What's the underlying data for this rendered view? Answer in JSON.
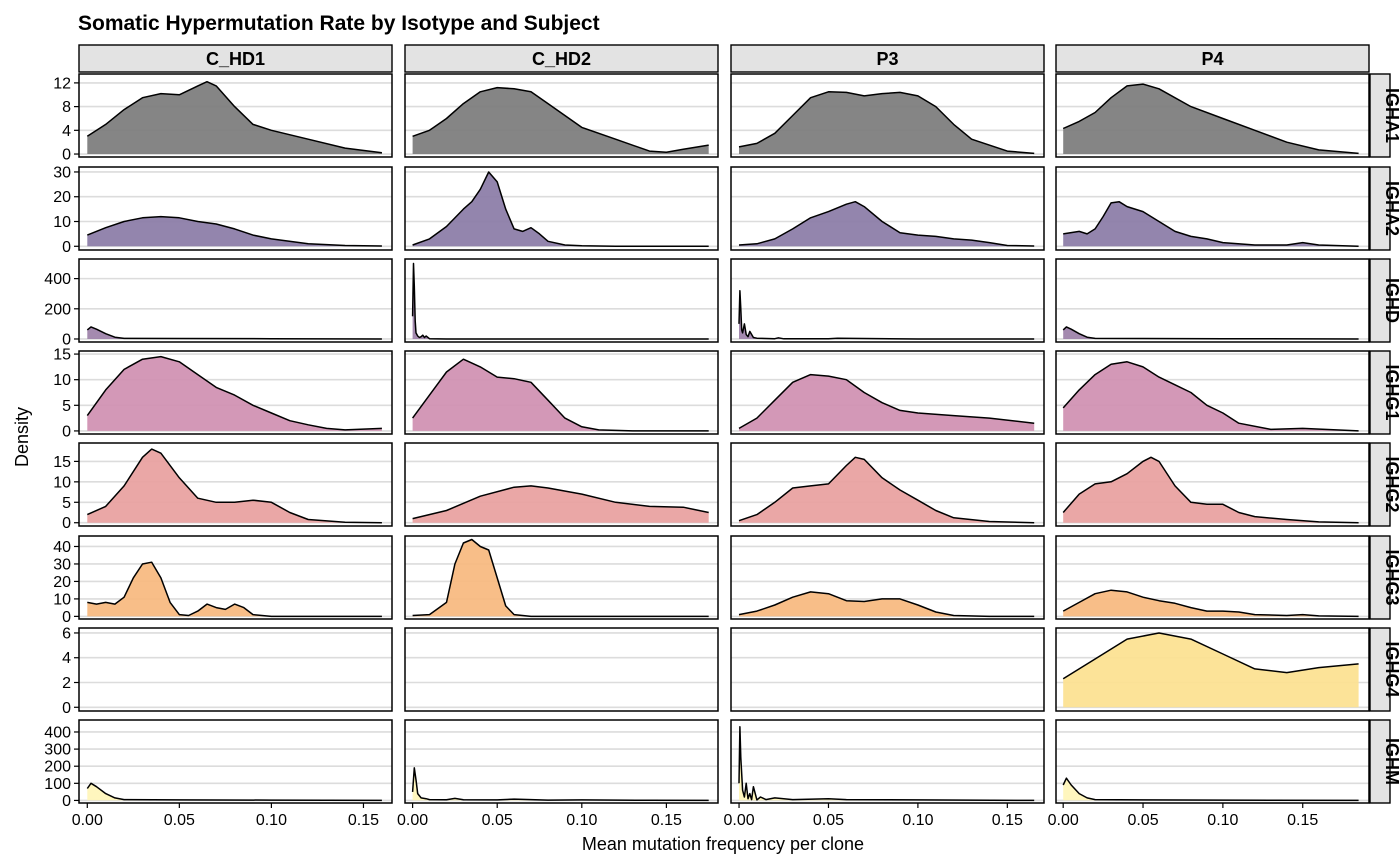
{
  "chart_data": {
    "type": "density",
    "title": "Somatic Hypermutation Rate by Isotype and Subject",
    "xlabel": "Mean mutation frequency per clone",
    "ylabel": "Density",
    "columns": [
      "C_HD1",
      "C_HD2",
      "P3",
      "P4"
    ],
    "rows": [
      "IGHA1",
      "IGHA2",
      "IGHD",
      "IGHG1",
      "IGHG2",
      "IGHG3",
      "IGHG4",
      "IGHM"
    ],
    "x_ticks": [
      0.0,
      0.05,
      0.1,
      0.15
    ],
    "x_tick_labels": [
      "0.00",
      "0.05",
      "0.10",
      "0.15"
    ],
    "xlim_by_column": [
      [
        -0.0045,
        0.1655
      ],
      [
        -0.0045,
        0.1805
      ],
      [
        -0.0045,
        0.1705
      ],
      [
        -0.0045,
        0.1915
      ]
    ],
    "grid": "horizontal",
    "row_scales": [
      {
        "ylim": [
          -0.5,
          13.5
        ],
        "ticks": [
          0,
          4,
          8,
          12
        ]
      },
      {
        "ylim": [
          -1.5,
          32
        ],
        "ticks": [
          0,
          10,
          20,
          30
        ]
      },
      {
        "ylim": [
          -20,
          530
        ],
        "ticks": [
          0,
          200,
          400
        ]
      },
      {
        "ylim": [
          -0.6,
          15.6
        ],
        "ticks": [
          0,
          5,
          10,
          15
        ]
      },
      {
        "ylim": [
          -0.8,
          19.5
        ],
        "ticks": [
          0,
          5,
          10,
          15
        ]
      },
      {
        "ylim": [
          -1.5,
          46
        ],
        "ticks": [
          0,
          10,
          20,
          30,
          40
        ]
      },
      {
        "ylim": [
          -0.3,
          6.4
        ],
        "ticks": [
          0,
          2,
          4,
          6
        ]
      },
      {
        "ylim": [
          -15,
          470
        ],
        "ticks": [
          0,
          100,
          200,
          300,
          400
        ]
      }
    ],
    "row_colors": [
      "#7b7b7b",
      "#8a7ba6",
      "#9c80a8",
      "#cf8fb1",
      "#e8a09e",
      "#f7b97e",
      "#fce18f",
      "#fff5b8"
    ],
    "series": [
      {
        "row": "IGHA1",
        "column": "C_HD1",
        "x": [
          0,
          0.01,
          0.02,
          0.03,
          0.04,
          0.05,
          0.06,
          0.065,
          0.07,
          0.08,
          0.09,
          0.1,
          0.12,
          0.14,
          0.16
        ],
        "y": [
          3,
          5,
          7.5,
          9.5,
          10.2,
          10,
          11.5,
          12.2,
          11.5,
          8,
          5,
          4,
          2.5,
          1,
          0.2
        ]
      },
      {
        "row": "IGHA1",
        "column": "C_HD2",
        "x": [
          0,
          0.01,
          0.02,
          0.03,
          0.04,
          0.05,
          0.06,
          0.07,
          0.08,
          0.09,
          0.1,
          0.12,
          0.14,
          0.15,
          0.16,
          0.175
        ],
        "y": [
          3,
          4,
          6,
          8.5,
          10.5,
          11.2,
          11,
          10.5,
          8.5,
          6.5,
          4.5,
          2.5,
          0.5,
          0.3,
          0.8,
          1.5
        ]
      },
      {
        "row": "IGHA1",
        "column": "P3",
        "x": [
          0,
          0.01,
          0.02,
          0.03,
          0.04,
          0.05,
          0.06,
          0.07,
          0.08,
          0.09,
          0.1,
          0.11,
          0.12,
          0.13,
          0.15,
          0.165
        ],
        "y": [
          1.2,
          1.8,
          3.5,
          6.5,
          9.5,
          10.5,
          10.4,
          9.8,
          10.2,
          10.4,
          9.8,
          8,
          5,
          2.5,
          0.5,
          0.1
        ]
      },
      {
        "row": "IGHA1",
        "column": "P4",
        "x": [
          0,
          0.01,
          0.02,
          0.03,
          0.04,
          0.05,
          0.06,
          0.08,
          0.1,
          0.12,
          0.14,
          0.16,
          0.185
        ],
        "y": [
          4.3,
          5.5,
          7,
          9.5,
          11.5,
          11.8,
          11,
          8,
          6,
          4,
          2,
          0.7,
          0.1
        ]
      },
      {
        "row": "IGHA2",
        "column": "C_HD1",
        "x": [
          0,
          0.01,
          0.02,
          0.03,
          0.04,
          0.05,
          0.06,
          0.07,
          0.08,
          0.09,
          0.1,
          0.12,
          0.14,
          0.16
        ],
        "y": [
          4.5,
          7.5,
          10,
          11.5,
          12,
          11.5,
          10,
          9,
          7,
          4.5,
          3,
          1,
          0.3,
          0.1
        ]
      },
      {
        "row": "IGHA2",
        "column": "C_HD2",
        "x": [
          0,
          0.01,
          0.02,
          0.03,
          0.035,
          0.04,
          0.045,
          0.05,
          0.055,
          0.06,
          0.065,
          0.07,
          0.075,
          0.08,
          0.09,
          0.1,
          0.12,
          0.14,
          0.175
        ],
        "y": [
          0.5,
          3,
          8,
          15,
          18,
          23,
          30,
          26,
          15,
          7,
          6,
          7.5,
          5,
          2,
          0.5,
          0.2,
          0,
          0,
          0
        ]
      },
      {
        "row": "IGHA2",
        "column": "P3",
        "x": [
          0,
          0.01,
          0.02,
          0.03,
          0.04,
          0.05,
          0.06,
          0.065,
          0.07,
          0.08,
          0.09,
          0.1,
          0.11,
          0.12,
          0.13,
          0.14,
          0.15,
          0.165
        ],
        "y": [
          0.5,
          1,
          3,
          7,
          11.5,
          14,
          17,
          18,
          16,
          10,
          5.5,
          4.5,
          4,
          3,
          2.5,
          1.5,
          0.3,
          0.1
        ]
      },
      {
        "row": "IGHA2",
        "column": "P4",
        "x": [
          0,
          0.01,
          0.015,
          0.02,
          0.025,
          0.03,
          0.035,
          0.04,
          0.05,
          0.06,
          0.07,
          0.08,
          0.09,
          0.1,
          0.12,
          0.14,
          0.15,
          0.16,
          0.185
        ],
        "y": [
          5,
          6,
          5,
          7,
          12,
          17.5,
          18,
          16,
          14,
          10,
          6,
          4,
          3,
          1.5,
          0.5,
          0.5,
          1.5,
          0.5,
          0
        ]
      },
      {
        "row": "IGHD",
        "column": "C_HD1",
        "x": [
          0,
          0.002,
          0.005,
          0.01,
          0.015,
          0.02,
          0.05,
          0.1,
          0.16
        ],
        "y": [
          60,
          80,
          65,
          35,
          12,
          4,
          3,
          2,
          0
        ]
      },
      {
        "row": "IGHD",
        "column": "C_HD2",
        "x": [
          0,
          0.0005,
          0.001,
          0.0015,
          0.002,
          0.003,
          0.004,
          0.005,
          0.006,
          0.007,
          0.008,
          0.01,
          0.02,
          0.05,
          0.1,
          0.175
        ],
        "y": [
          150,
          500,
          350,
          120,
          40,
          20,
          10,
          15,
          25,
          10,
          20,
          2,
          0,
          0,
          0,
          0
        ]
      },
      {
        "row": "IGHD",
        "column": "P3",
        "x": [
          0,
          0.0005,
          0.001,
          0.0015,
          0.002,
          0.003,
          0.004,
          0.005,
          0.006,
          0.008,
          0.01,
          0.02,
          0.022,
          0.025,
          0.05,
          0.055,
          0.1,
          0.165
        ],
        "y": [
          100,
          320,
          200,
          60,
          40,
          100,
          30,
          15,
          50,
          10,
          5,
          2,
          8,
          1,
          1,
          5,
          0,
          0
        ]
      },
      {
        "row": "IGHD",
        "column": "P4",
        "x": [
          0,
          0.002,
          0.005,
          0.01,
          0.015,
          0.02,
          0.05,
          0.1,
          0.185
        ],
        "y": [
          60,
          80,
          65,
          35,
          12,
          4,
          3,
          2,
          0
        ]
      },
      {
        "row": "IGHG1",
        "column": "C_HD1",
        "x": [
          0,
          0.01,
          0.02,
          0.03,
          0.04,
          0.05,
          0.06,
          0.07,
          0.08,
          0.09,
          0.1,
          0.11,
          0.12,
          0.13,
          0.14,
          0.16
        ],
        "y": [
          3,
          8,
          12,
          14,
          14.5,
          13.5,
          11,
          8.5,
          7,
          5,
          3.5,
          2,
          1.2,
          0.5,
          0.2,
          0.5
        ]
      },
      {
        "row": "IGHG1",
        "column": "C_HD2",
        "x": [
          0,
          0.01,
          0.02,
          0.03,
          0.04,
          0.05,
          0.06,
          0.07,
          0.08,
          0.09,
          0.1,
          0.11,
          0.13,
          0.15,
          0.175
        ],
        "y": [
          2.5,
          7,
          11.5,
          14,
          12.5,
          10.5,
          10.2,
          9.5,
          6,
          2.5,
          0.8,
          0.2,
          0,
          0,
          0
        ]
      },
      {
        "row": "IGHG1",
        "column": "P3",
        "x": [
          0,
          0.01,
          0.02,
          0.03,
          0.04,
          0.05,
          0.06,
          0.07,
          0.08,
          0.09,
          0.1,
          0.12,
          0.14,
          0.165
        ],
        "y": [
          0.5,
          2.5,
          6,
          9.5,
          11,
          10.7,
          10,
          7.5,
          5.5,
          4,
          3.5,
          3,
          2.5,
          1.5
        ]
      },
      {
        "row": "IGHG1",
        "column": "P4",
        "x": [
          0,
          0.01,
          0.02,
          0.03,
          0.04,
          0.05,
          0.06,
          0.07,
          0.08,
          0.09,
          0.1,
          0.11,
          0.13,
          0.15,
          0.185
        ],
        "y": [
          4.5,
          8,
          11,
          13,
          13.5,
          12.5,
          10.5,
          9,
          7.5,
          5,
          3.5,
          1.5,
          0.3,
          0.5,
          0
        ]
      },
      {
        "row": "IGHG2",
        "column": "C_HD1",
        "x": [
          0,
          0.01,
          0.02,
          0.03,
          0.035,
          0.04,
          0.05,
          0.06,
          0.07,
          0.08,
          0.09,
          0.1,
          0.11,
          0.12,
          0.14,
          0.16
        ],
        "y": [
          2,
          4,
          9,
          16,
          18,
          17,
          11,
          6,
          5,
          5,
          5.5,
          5,
          2.5,
          0.8,
          0.1,
          0
        ]
      },
      {
        "row": "IGHG2",
        "column": "C_HD2",
        "x": [
          0,
          0.02,
          0.04,
          0.06,
          0.07,
          0.08,
          0.1,
          0.12,
          0.14,
          0.16,
          0.175
        ],
        "y": [
          1,
          3,
          6.5,
          8.7,
          9,
          8.5,
          7,
          5,
          4,
          3.8,
          2.5
        ]
      },
      {
        "row": "IGHG2",
        "column": "P3",
        "x": [
          0,
          0.01,
          0.02,
          0.03,
          0.04,
          0.05,
          0.06,
          0.065,
          0.07,
          0.08,
          0.09,
          0.1,
          0.11,
          0.12,
          0.14,
          0.165
        ],
        "y": [
          0.5,
          2,
          5,
          8.5,
          9,
          9.5,
          14,
          16,
          15.5,
          11,
          8,
          5.5,
          3,
          1.2,
          0.3,
          0
        ]
      },
      {
        "row": "IGHG2",
        "column": "P4",
        "x": [
          0,
          0.01,
          0.02,
          0.03,
          0.04,
          0.05,
          0.055,
          0.06,
          0.07,
          0.08,
          0.09,
          0.1,
          0.11,
          0.12,
          0.14,
          0.16,
          0.185
        ],
        "y": [
          2.5,
          7,
          9.5,
          10,
          12,
          15,
          16,
          15,
          9,
          5,
          4.5,
          4.5,
          2.5,
          1.5,
          0.8,
          0.2,
          0
        ]
      },
      {
        "row": "IGHG3",
        "column": "C_HD1",
        "x": [
          0,
          0.005,
          0.01,
          0.015,
          0.02,
          0.025,
          0.03,
          0.035,
          0.04,
          0.045,
          0.05,
          0.055,
          0.06,
          0.065,
          0.07,
          0.075,
          0.08,
          0.085,
          0.09,
          0.1,
          0.16
        ],
        "y": [
          8,
          7,
          8,
          7,
          11,
          22,
          30,
          31,
          22,
          8,
          1,
          0.5,
          3,
          7,
          5,
          4,
          7,
          5,
          1,
          0,
          0
        ]
      },
      {
        "row": "IGHG3",
        "column": "C_HD2",
        "x": [
          0,
          0.01,
          0.02,
          0.025,
          0.03,
          0.035,
          0.04,
          0.045,
          0.05,
          0.055,
          0.06,
          0.07,
          0.1,
          0.175
        ],
        "y": [
          0.5,
          1,
          8,
          30,
          42,
          44,
          40,
          38,
          22,
          6,
          1,
          0,
          0,
          0
        ]
      },
      {
        "row": "IGHG3",
        "column": "P3",
        "x": [
          0,
          0.01,
          0.02,
          0.03,
          0.04,
          0.05,
          0.06,
          0.07,
          0.08,
          0.09,
          0.1,
          0.11,
          0.12,
          0.14,
          0.165
        ],
        "y": [
          1,
          3,
          6.5,
          11,
          14,
          13,
          9,
          8.5,
          10,
          10,
          6.5,
          2.5,
          0.5,
          0,
          0
        ]
      },
      {
        "row": "IGHG3",
        "column": "P4",
        "x": [
          0,
          0.01,
          0.02,
          0.03,
          0.04,
          0.05,
          0.06,
          0.07,
          0.08,
          0.09,
          0.1,
          0.11,
          0.12,
          0.14,
          0.15,
          0.16,
          0.185
        ],
        "y": [
          3,
          8,
          13,
          15,
          14,
          11,
          9,
          7.5,
          5,
          3,
          3,
          2.5,
          1,
          0.5,
          1,
          0.3,
          0
        ]
      },
      {
        "row": "IGHG4",
        "column": "P4",
        "x": [
          0,
          0.02,
          0.04,
          0.06,
          0.08,
          0.1,
          0.12,
          0.14,
          0.16,
          0.185
        ],
        "y": [
          2.3,
          3.9,
          5.5,
          6,
          5.5,
          4.3,
          3.1,
          2.8,
          3.2,
          3.5
        ]
      },
      {
        "row": "IGHM",
        "column": "C_HD1",
        "x": [
          0,
          0.002,
          0.005,
          0.01,
          0.015,
          0.02,
          0.05,
          0.1,
          0.16
        ],
        "y": [
          70,
          100,
          80,
          40,
          15,
          5,
          3,
          2,
          0
        ]
      },
      {
        "row": "IGHM",
        "column": "C_HD2",
        "x": [
          0,
          0.001,
          0.002,
          0.003,
          0.005,
          0.008,
          0.01,
          0.02,
          0.025,
          0.03,
          0.05,
          0.06,
          0.08,
          0.1,
          0.14,
          0.175
        ],
        "y": [
          50,
          190,
          120,
          40,
          15,
          10,
          5,
          4,
          12,
          4,
          3,
          8,
          2,
          3,
          1,
          0
        ]
      },
      {
        "row": "IGHM",
        "column": "P3",
        "x": [
          0,
          0.0005,
          0.001,
          0.002,
          0.003,
          0.004,
          0.005,
          0.006,
          0.007,
          0.008,
          0.01,
          0.012,
          0.015,
          0.02,
          0.03,
          0.05,
          0.06,
          0.1,
          0.165
        ],
        "y": [
          100,
          430,
          250,
          60,
          20,
          100,
          10,
          40,
          5,
          80,
          3,
          20,
          5,
          15,
          5,
          10,
          5,
          3,
          0
        ]
      },
      {
        "row": "IGHM",
        "column": "P4",
        "x": [
          0,
          0.002,
          0.005,
          0.01,
          0.015,
          0.02,
          0.05,
          0.1,
          0.185
        ],
        "y": [
          90,
          130,
          90,
          40,
          15,
          5,
          3,
          2,
          0
        ]
      }
    ]
  }
}
